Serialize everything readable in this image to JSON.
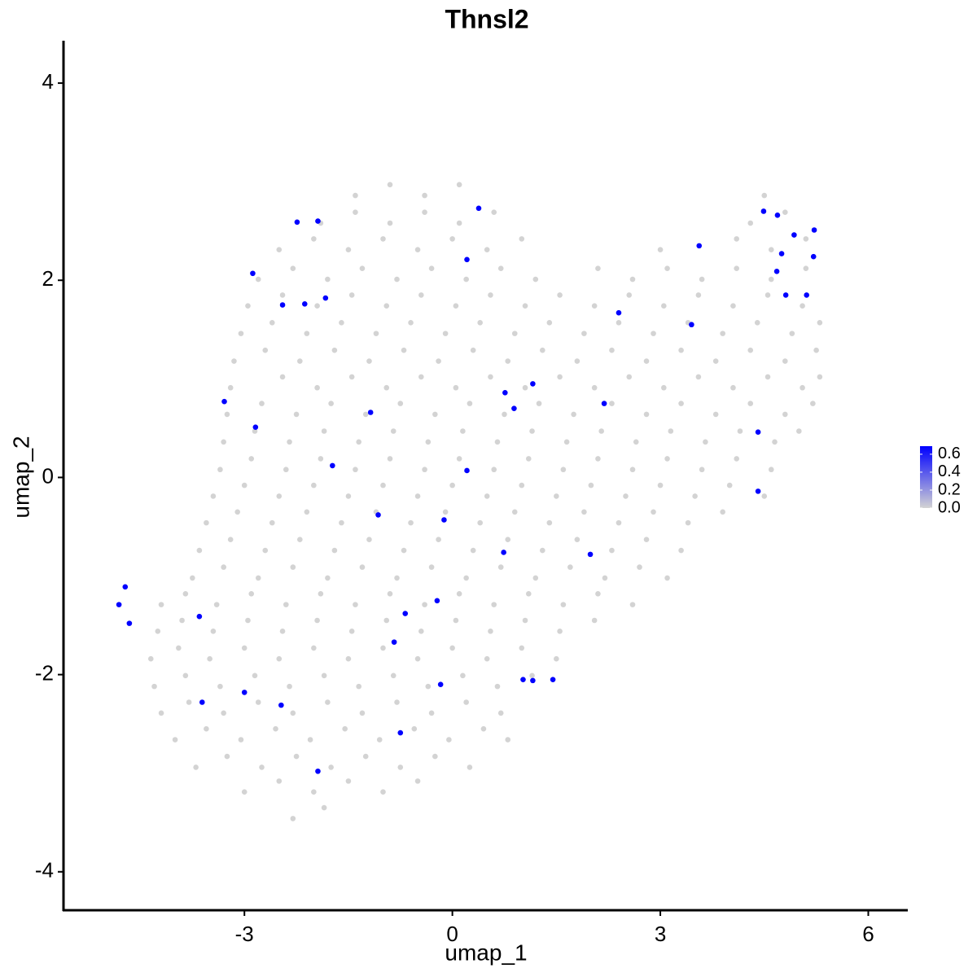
{
  "chart_data": {
    "type": "scatter",
    "title": "Thnsl2",
    "x_label": "umap_1",
    "y_label": "umap_2",
    "xlim": [
      -5.61,
      6.57
    ],
    "ylim": [
      -4.39,
      4.43
    ],
    "xticks": [
      -3,
      0,
      3,
      6
    ],
    "yticks": [
      -4,
      -2,
      0,
      2,
      4
    ],
    "grid": false,
    "colorbar": {
      "lim": [
        0,
        0.69
      ],
      "ticks": [
        {
          "value": 0,
          "label": "0.0"
        },
        0.2,
        0.4,
        0.6
      ],
      "colors": [
        "#d3d3d3",
        "#0000ff"
      ]
    },
    "series": [
      {
        "x": [
          -1.4,
          -0.9,
          -0.4,
          0.1,
          4.5,
          -1.9,
          -1.4,
          -0.9,
          -0.4,
          0.1,
          0.6,
          4.3,
          4.8,
          -2.5,
          -2.0,
          -1.5,
          -1.0,
          -0.5,
          0.0,
          0.5,
          1.0,
          3.0,
          4.1,
          4.6,
          5.1,
          -2.8,
          -2.3,
          -1.8,
          -1.3,
          -0.8,
          -0.3,
          0.2,
          0.7,
          1.2,
          2.1,
          2.6,
          3.1,
          3.6,
          4.1,
          4.6,
          5.1,
          -2.95,
          -2.45,
          -1.95,
          -1.45,
          -0.95,
          -0.45,
          0.05,
          0.55,
          1.05,
          1.55,
          2.05,
          2.55,
          3.05,
          3.55,
          4.05,
          4.55,
          5.05,
          -3.05,
          -2.6,
          -2.1,
          -1.6,
          -1.1,
          -0.6,
          -0.1,
          0.4,
          0.9,
          1.4,
          1.9,
          2.4,
          2.9,
          3.4,
          3.9,
          4.4,
          4.9,
          5.3,
          -3.15,
          -2.7,
          -2.2,
          -1.7,
          -1.2,
          -0.7,
          -0.2,
          0.3,
          0.8,
          1.3,
          1.8,
          2.3,
          2.8,
          3.3,
          3.8,
          4.3,
          4.8,
          5.25,
          -3.2,
          -2.45,
          -1.95,
          -1.45,
          -0.95,
          -0.45,
          0.05,
          0.55,
          1.05,
          1.55,
          2.05,
          2.55,
          3.05,
          3.55,
          4.05,
          4.55,
          5.05,
          5.3,
          -3.25,
          -2.75,
          -2.25,
          -1.75,
          -1.25,
          -0.75,
          -0.25,
          0.25,
          0.75,
          1.25,
          1.75,
          2.3,
          2.8,
          3.3,
          3.8,
          4.3,
          4.8,
          5.2,
          -3.3,
          -2.85,
          -2.35,
          -1.85,
          -1.35,
          -0.85,
          -0.35,
          0.15,
          0.65,
          1.15,
          1.65,
          2.15,
          2.65,
          3.15,
          3.65,
          4.15,
          4.65,
          5.0,
          -3.35,
          -2.9,
          -2.4,
          -1.9,
          -1.4,
          -0.9,
          -0.4,
          0.1,
          0.6,
          1.1,
          1.6,
          2.1,
          2.6,
          3.1,
          3.6,
          4.1,
          4.6,
          -3.45,
          -3.0,
          -2.5,
          -2.0,
          -1.5,
          -1.0,
          -0.5,
          0.0,
          0.5,
          1.0,
          1.5,
          2.0,
          2.5,
          3.0,
          3.5,
          4.0,
          4.5,
          -3.55,
          -3.1,
          -2.6,
          -2.1,
          -1.6,
          -1.1,
          -0.6,
          -0.1,
          0.4,
          0.9,
          1.4,
          1.9,
          2.4,
          2.9,
          3.4,
          3.9,
          -3.65,
          -3.2,
          -2.7,
          -2.2,
          -1.7,
          -1.2,
          -0.7,
          -0.2,
          0.3,
          0.8,
          1.3,
          1.8,
          2.3,
          2.8,
          3.3,
          -3.75,
          -3.3,
          -2.8,
          -2.3,
          -1.8,
          -1.3,
          -0.8,
          -0.3,
          0.2,
          0.7,
          1.2,
          1.7,
          2.2,
          2.7,
          3.1,
          -4.2,
          -3.85,
          -3.4,
          -2.9,
          -2.4,
          -1.9,
          -1.4,
          -0.9,
          -0.4,
          0.1,
          0.6,
          1.1,
          1.6,
          2.1,
          2.6,
          -4.25,
          -3.9,
          -3.45,
          -2.95,
          -2.45,
          -1.95,
          -1.45,
          -0.95,
          -0.45,
          0.05,
          0.55,
          1.05,
          1.55,
          2.05,
          -4.35,
          -3.95,
          -3.5,
          -3.0,
          -2.5,
          -2.0,
          -1.5,
          -1.0,
          -0.5,
          0.0,
          0.5,
          1.0,
          1.5,
          -4.3,
          -3.85,
          -3.35,
          -2.85,
          -2.35,
          -1.85,
          -1.35,
          -0.85,
          -0.35,
          0.15,
          0.65,
          1.15,
          -4.2,
          -3.8,
          -3.3,
          -2.8,
          -2.3,
          -1.8,
          -1.3,
          -0.8,
          -0.3,
          0.2,
          0.7,
          -4.0,
          -3.55,
          -3.05,
          -2.55,
          -2.05,
          -1.55,
          -1.05,
          -0.55,
          -0.05,
          0.45,
          0.8,
          -3.7,
          -3.25,
          -2.75,
          -2.25,
          -1.75,
          -1.25,
          -0.75,
          -0.25,
          0.25,
          -3.0,
          -2.5,
          -2.0,
          -1.5,
          -1.0,
          -0.5,
          -2.3,
          -1.85
        ],
        "y": [
          2.86,
          2.97,
          2.86,
          2.97,
          2.86,
          2.58,
          2.69,
          2.58,
          2.69,
          2.58,
          2.69,
          2.58,
          2.69,
          2.31,
          2.42,
          2.31,
          2.42,
          2.31,
          2.42,
          2.31,
          2.42,
          2.31,
          2.42,
          2.31,
          2.42,
          2.01,
          2.12,
          2.01,
          2.12,
          2.01,
          2.12,
          2.01,
          2.12,
          2.01,
          2.12,
          2.01,
          2.12,
          2.01,
          2.12,
          2.01,
          2.12,
          1.74,
          1.85,
          1.74,
          1.85,
          1.74,
          1.85,
          1.74,
          1.85,
          1.74,
          1.85,
          1.74,
          1.85,
          1.74,
          1.85,
          1.74,
          1.85,
          1.74,
          1.46,
          1.57,
          1.46,
          1.57,
          1.46,
          1.57,
          1.46,
          1.57,
          1.46,
          1.57,
          1.46,
          1.57,
          1.46,
          1.57,
          1.46,
          1.57,
          1.46,
          1.57,
          1.18,
          1.29,
          1.18,
          1.29,
          1.18,
          1.29,
          1.18,
          1.29,
          1.18,
          1.29,
          1.18,
          1.29,
          1.18,
          1.29,
          1.18,
          1.29,
          1.18,
          1.29,
          0.91,
          1.02,
          0.91,
          1.02,
          0.91,
          1.02,
          0.91,
          1.02,
          0.91,
          1.02,
          0.91,
          1.02,
          0.91,
          1.02,
          0.91,
          1.02,
          0.91,
          1.02,
          0.64,
          0.75,
          0.64,
          0.75,
          0.64,
          0.75,
          0.64,
          0.75,
          0.64,
          0.75,
          0.64,
          0.75,
          0.64,
          0.75,
          0.64,
          0.75,
          0.64,
          0.75,
          0.36,
          0.47,
          0.36,
          0.47,
          0.36,
          0.47,
          0.36,
          0.47,
          0.36,
          0.47,
          0.36,
          0.47,
          0.36,
          0.47,
          0.36,
          0.47,
          0.36,
          0.47,
          0.08,
          0.19,
          0.08,
          0.19,
          0.08,
          0.19,
          0.08,
          0.19,
          0.08,
          0.19,
          0.08,
          0.19,
          0.08,
          0.19,
          0.08,
          0.19,
          0.08,
          -0.19,
          -0.08,
          -0.19,
          -0.08,
          -0.19,
          -0.08,
          -0.19,
          -0.08,
          -0.19,
          -0.08,
          -0.19,
          -0.08,
          -0.19,
          -0.08,
          -0.19,
          -0.08,
          -0.19,
          -0.46,
          -0.35,
          -0.46,
          -0.35,
          -0.46,
          -0.35,
          -0.46,
          -0.35,
          -0.46,
          -0.35,
          -0.46,
          -0.35,
          -0.46,
          -0.35,
          -0.46,
          -0.35,
          -0.74,
          -0.63,
          -0.74,
          -0.63,
          -0.74,
          -0.63,
          -0.74,
          -0.63,
          -0.74,
          -0.63,
          -0.74,
          -0.63,
          -0.74,
          -0.63,
          -0.74,
          -1.02,
          -0.91,
          -1.02,
          -0.91,
          -1.02,
          -0.91,
          -1.02,
          -0.91,
          -1.02,
          -0.91,
          -1.02,
          -0.91,
          -1.02,
          -0.91,
          -1.02,
          -1.29,
          -1.18,
          -1.29,
          -1.18,
          -1.29,
          -1.18,
          -1.29,
          -1.18,
          -1.29,
          -1.18,
          -1.29,
          -1.18,
          -1.29,
          -1.18,
          -1.29,
          -1.56,
          -1.45,
          -1.56,
          -1.45,
          -1.56,
          -1.45,
          -1.56,
          -1.45,
          -1.56,
          -1.45,
          -1.56,
          -1.45,
          -1.56,
          -1.45,
          -1.84,
          -1.73,
          -1.84,
          -1.73,
          -1.84,
          -1.73,
          -1.84,
          -1.73,
          -1.84,
          -1.73,
          -1.84,
          -1.73,
          -1.84,
          -2.12,
          -2.01,
          -2.12,
          -2.01,
          -2.12,
          -2.01,
          -2.12,
          -2.01,
          -2.12,
          -2.01,
          -2.12,
          -2.01,
          -2.39,
          -2.28,
          -2.39,
          -2.28,
          -2.39,
          -2.28,
          -2.39,
          -2.28,
          -2.39,
          -2.28,
          -2.39,
          -2.66,
          -2.55,
          -2.66,
          -2.55,
          -2.66,
          -2.55,
          -2.66,
          -2.55,
          -2.66,
          -2.55,
          -2.66,
          -2.94,
          -2.83,
          -2.94,
          -2.83,
          -2.94,
          -2.83,
          -2.94,
          -2.83,
          -2.94,
          -3.19,
          -3.08,
          -3.19,
          -3.08,
          -3.19,
          -3.08,
          -3.46,
          -3.35
        ],
        "values": [
          0,
          0,
          0,
          0,
          0,
          0,
          0,
          0,
          0,
          0,
          0,
          0,
          0,
          0,
          0,
          0,
          0,
          0,
          0,
          0,
          0,
          0,
          0,
          0,
          0,
          0,
          0,
          0,
          0,
          0,
          0,
          0,
          0,
          0,
          0,
          0,
          0,
          0,
          0,
          0,
          0,
          0,
          0,
          0,
          0,
          0,
          0,
          0,
          0,
          0,
          0,
          0,
          0,
          0,
          0,
          0,
          0,
          0,
          0,
          0,
          0,
          0,
          0,
          0,
          0,
          0,
          0,
          0,
          0,
          0,
          0,
          0,
          0,
          0,
          0,
          0,
          0,
          0,
          0,
          0,
          0,
          0,
          0,
          0,
          0,
          0,
          0,
          0,
          0,
          0,
          0,
          0,
          0,
          0,
          0,
          0,
          0,
          0,
          0,
          0,
          0,
          0,
          0,
          0,
          0,
          0,
          0,
          0,
          0,
          0,
          0,
          0,
          0,
          0,
          0,
          0,
          0,
          0,
          0,
          0,
          0,
          0,
          0,
          0,
          0,
          0,
          0,
          0,
          0,
          0,
          0,
          0,
          0,
          0,
          0,
          0,
          0,
          0,
          0,
          0,
          0,
          0,
          0,
          0,
          0,
          0,
          0,
          0,
          0,
          0,
          0,
          0,
          0,
          0,
          0,
          0,
          0,
          0,
          0,
          0,
          0,
          0,
          0,
          0,
          0,
          0,
          0,
          0,
          0,
          0,
          0,
          0,
          0,
          0,
          0,
          0,
          0,
          0,
          0,
          0,
          0,
          0,
          0,
          0,
          0,
          0,
          0,
          0,
          0,
          0,
          0,
          0,
          0,
          0,
          0,
          0,
          0,
          0,
          0,
          0,
          0,
          0,
          0,
          0,
          0,
          0,
          0,
          0,
          0,
          0,
          0,
          0,
          0,
          0,
          0,
          0,
          0,
          0,
          0,
          0,
          0,
          0,
          0,
          0,
          0,
          0,
          0,
          0,
          0,
          0,
          0,
          0,
          0,
          0,
          0,
          0,
          0,
          0,
          0,
          0,
          0,
          0,
          0,
          0,
          0,
          0,
          0,
          0,
          0,
          0,
          0,
          0,
          0,
          0,
          0,
          0,
          0,
          0,
          0,
          0,
          0,
          0,
          0,
          0,
          0,
          0,
          0,
          0,
          0,
          0,
          0,
          0,
          0,
          0,
          0,
          0,
          0,
          0,
          0,
          0,
          0,
          0,
          0,
          0,
          0,
          0,
          0,
          0,
          0,
          0,
          0,
          0,
          0,
          0,
          0,
          0,
          0,
          0,
          0,
          0,
          0,
          0,
          0,
          0,
          0,
          0,
          0,
          0,
          0,
          0,
          0,
          0,
          0,
          0,
          0,
          0,
          0,
          0,
          0,
          0,
          0
        ]
      },
      {
        "x": [
          0.38,
          -2.24,
          -1.94,
          0.21,
          -2.88,
          -2.45,
          -2.13,
          -1.83,
          -3.29,
          -2.84,
          -1.18,
          -1.73,
          -1.07,
          -0.12,
          0.21,
          0.76,
          0.89,
          1.16,
          0.74,
          1.99,
          2.19,
          2.4,
          3.56,
          3.45,
          4.49,
          4.69,
          5.22,
          4.93,
          4.75,
          5.21,
          4.68,
          4.81,
          5.11,
          4.41,
          4.41,
          -4.72,
          -4.81,
          -4.66,
          -3.65,
          -3.61,
          -3.0,
          -2.47,
          -1.94,
          -0.84,
          -0.68,
          -0.22,
          -0.17,
          -0.75,
          1.02,
          1.16,
          1.45
        ],
        "y": [
          2.73,
          2.59,
          2.6,
          2.21,
          2.07,
          1.75,
          1.76,
          1.82,
          0.77,
          0.51,
          0.66,
          0.12,
          -0.38,
          -0.43,
          0.07,
          0.86,
          0.7,
          0.95,
          -0.76,
          -0.78,
          0.75,
          1.67,
          2.35,
          1.55,
          2.7,
          2.66,
          2.51,
          2.46,
          2.27,
          2.24,
          2.09,
          1.85,
          1.85,
          0.46,
          -0.14,
          -1.11,
          -1.29,
          -1.48,
          -1.41,
          -2.28,
          -2.18,
          -2.31,
          -2.98,
          -1.67,
          -1.38,
          -1.25,
          -2.1,
          -2.59,
          -2.05,
          -2.06,
          -2.05
        ],
        "values": [
          0.69,
          0.69,
          0.69,
          0.69,
          0.69,
          0.69,
          0.69,
          0.69,
          0.69,
          0.69,
          0.69,
          0.69,
          0.69,
          0.69,
          0.69,
          0.69,
          0.69,
          0.69,
          0.69,
          0.69,
          0.69,
          0.69,
          0.69,
          0.69,
          0.69,
          0.69,
          0.69,
          0.69,
          0.69,
          0.69,
          0.69,
          0.69,
          0.69,
          0.69,
          0.69,
          0.69,
          0.69,
          0.69,
          0.69,
          0.69,
          0.69,
          0.69,
          0.69,
          0.69,
          0.69,
          0.69,
          0.69,
          0.69,
          0.69,
          0.69,
          0.69
        ]
      }
    ]
  }
}
